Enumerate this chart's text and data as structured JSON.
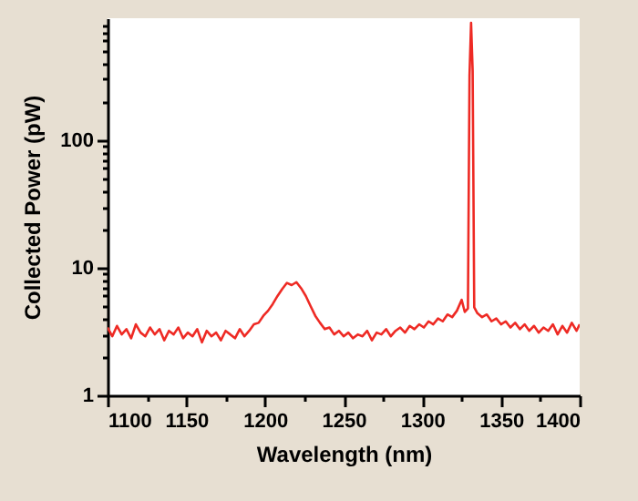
{
  "chart_data": {
    "type": "line",
    "xlabel": "Wavelength (nm)",
    "ylabel": "Collected Power (pW)",
    "x": [
      1100,
      1103,
      1106,
      1109,
      1112,
      1115,
      1118,
      1121,
      1124,
      1127,
      1130,
      1133,
      1136,
      1139,
      1142,
      1145,
      1148,
      1151,
      1154,
      1157,
      1160,
      1163,
      1166,
      1169,
      1172,
      1175,
      1178,
      1181,
      1184,
      1187,
      1190,
      1193,
      1196,
      1199,
      1202,
      1205,
      1208,
      1211,
      1214,
      1217,
      1220,
      1223,
      1226,
      1229,
      1232,
      1235,
      1238,
      1241,
      1244,
      1247,
      1250,
      1253,
      1256,
      1259,
      1262,
      1265,
      1268,
      1271,
      1274,
      1277,
      1280,
      1283,
      1286,
      1289,
      1292,
      1295,
      1298,
      1301,
      1304,
      1307,
      1310,
      1313,
      1316,
      1319,
      1322,
      1325,
      1327,
      1329,
      1330,
      1331,
      1332,
      1333,
      1335,
      1338,
      1341,
      1344,
      1347,
      1350,
      1353,
      1356,
      1359,
      1362,
      1365,
      1368,
      1371,
      1374,
      1377,
      1380,
      1383,
      1386,
      1389,
      1392,
      1395,
      1398,
      1400
    ],
    "series": [
      {
        "color": "#ee2a24",
        "values": [
          3.4,
          2.9,
          3.5,
          3.0,
          3.3,
          2.8,
          3.6,
          3.1,
          2.9,
          3.4,
          3.0,
          3.3,
          2.7,
          3.2,
          3.0,
          3.4,
          2.8,
          3.1,
          2.9,
          3.3,
          2.6,
          3.2,
          2.9,
          3.1,
          2.7,
          3.2,
          3.0,
          2.8,
          3.3,
          2.9,
          3.2,
          3.6,
          3.7,
          4.2,
          4.6,
          5.2,
          6.0,
          6.8,
          7.6,
          7.3,
          7.7,
          6.9,
          6.0,
          5.0,
          4.2,
          3.7,
          3.3,
          3.4,
          3.0,
          3.2,
          2.9,
          3.1,
          2.8,
          3.0,
          2.9,
          3.2,
          2.7,
          3.1,
          3.0,
          3.3,
          2.9,
          3.2,
          3.4,
          3.1,
          3.5,
          3.3,
          3.6,
          3.4,
          3.8,
          3.6,
          4.0,
          3.8,
          4.3,
          4.1,
          4.6,
          5.6,
          4.5,
          4.8,
          320,
          830,
          350,
          4.9,
          4.4,
          4.1,
          4.3,
          3.8,
          4.0,
          3.6,
          3.8,
          3.4,
          3.7,
          3.3,
          3.6,
          3.2,
          3.5,
          3.1,
          3.4,
          3.2,
          3.6,
          3.0,
          3.5,
          3.1,
          3.7,
          3.2,
          3.6
        ]
      }
    ],
    "xlim": [
      1100,
      1400
    ],
    "xticks": [
      1100,
      {
        "value": 1125,
        "label": null
      },
      1150,
      {
        "value": 1175,
        "label": null
      },
      1200,
      {
        "value": 1225,
        "label": null
      },
      1250,
      {
        "value": 1275,
        "label": null
      },
      1300,
      {
        "value": 1325,
        "label": null
      },
      1350,
      {
        "value": 1375,
        "label": null
      },
      1400
    ],
    "ylim": [
      1,
      900
    ],
    "log": true,
    "yticks": [
      1,
      {
        "value": 2,
        "label": null
      },
      {
        "value": 3,
        "label": null
      },
      {
        "value": 4,
        "label": null
      },
      {
        "value": 5,
        "label": null
      },
      {
        "value": 6,
        "label": null
      },
      {
        "value": 7,
        "label": null
      },
      {
        "value": 8,
        "label": null
      },
      {
        "value": 9,
        "label": null
      },
      10,
      {
        "value": 20,
        "label": null
      },
      {
        "value": 30,
        "label": null
      },
      {
        "value": 40,
        "label": null
      },
      {
        "value": 50,
        "label": null
      },
      {
        "value": 60,
        "label": null
      },
      {
        "value": 70,
        "label": null
      },
      {
        "value": 80,
        "label": null
      },
      {
        "value": 90,
        "label": null
      },
      100,
      {
        "value": 200,
        "label": null
      },
      {
        "value": 300,
        "label": null
      },
      {
        "value": 400,
        "label": null
      },
      {
        "value": 500,
        "label": null
      },
      {
        "value": 600,
        "label": null
      },
      {
        "value": 700,
        "label": null
      },
      {
        "value": 800,
        "label": null
      }
    ],
    "grid": false,
    "marker": "none",
    "line_style": "solid"
  }
}
